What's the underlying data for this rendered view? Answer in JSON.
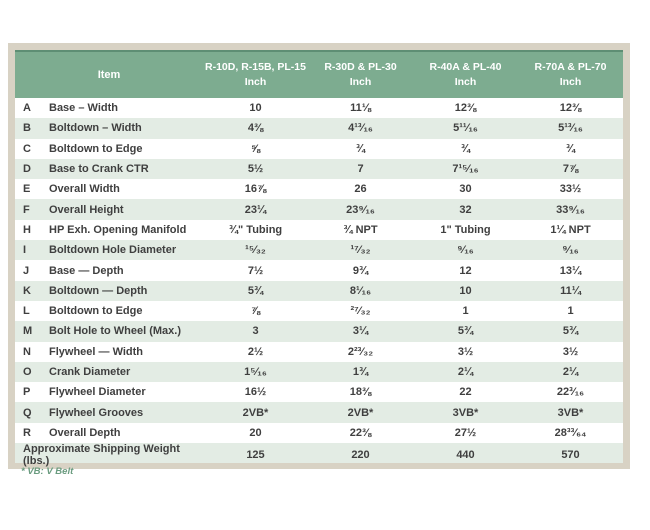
{
  "table": {
    "header": {
      "item_label": "Item",
      "columns": [
        {
          "models": "R-10D, R-15B, PL-15",
          "unit": "Inch"
        },
        {
          "models": "R-30D & PL-30",
          "unit": "Inch"
        },
        {
          "models": "R-40A & PL-40",
          "unit": "Inch"
        },
        {
          "models": "R-70A & PL-70",
          "unit": "Inch"
        }
      ]
    },
    "rows": [
      {
        "letter": "A",
        "item": "Base – Width",
        "values": [
          "10",
          "11⅛",
          "12⅜",
          "12⅜"
        ]
      },
      {
        "letter": "B",
        "item": "Boltdown – Width",
        "values": [
          "4⅜",
          "4¹³⁄₁₆",
          "5¹¹⁄₁₆",
          "5¹³⁄₁₆"
        ]
      },
      {
        "letter": "C",
        "item": "Boltdown to Edge",
        "values": [
          "⅝",
          "¾",
          "¾",
          "¾"
        ]
      },
      {
        "letter": "D",
        "item": "Base to Crank CTR",
        "values": [
          "5½",
          "7",
          "7¹⁵⁄₁₆",
          "7⅞"
        ]
      },
      {
        "letter": "E",
        "item": "Overall Width",
        "values": [
          "16⅞",
          "26",
          "30",
          "33½"
        ]
      },
      {
        "letter": "F",
        "item": "Overall Height",
        "values": [
          "23¼",
          "23⁹⁄₁₆",
          "32",
          "33⁹⁄₁₆"
        ]
      },
      {
        "letter": "H",
        "item": "HP Exh. Opening Manifold",
        "values": [
          "¾\" Tubing",
          "¾ NPT",
          "1\" Tubing",
          "1¼ NPT"
        ]
      },
      {
        "letter": "I",
        "item": "Boltdown Hole Diameter",
        "values": [
          "¹⁵⁄₃₂",
          "¹⁷⁄₃₂",
          "⁹⁄₁₆",
          "⁹⁄₁₆"
        ]
      },
      {
        "letter": "J",
        "item": "Base — Depth",
        "values": [
          "7½",
          "9¾",
          "12",
          "13¼"
        ]
      },
      {
        "letter": "K",
        "item": "Boltdown — Depth",
        "values": [
          "5¾",
          "8¹⁄₁₆",
          "10",
          "11¼"
        ]
      },
      {
        "letter": "L",
        "item": "Boltdown to Edge",
        "values": [
          "⅞",
          "²⁷⁄₃₂",
          "1",
          "1"
        ]
      },
      {
        "letter": "M",
        "item": "Bolt Hole to Wheel (Max.)",
        "values": [
          "3",
          "3¼",
          "5¾",
          "5¾"
        ]
      },
      {
        "letter": "N",
        "item": "Flywheel — Width",
        "values": [
          "2½",
          "2²³⁄₃₂",
          "3½",
          "3½"
        ]
      },
      {
        "letter": "O",
        "item": "Crank Diameter",
        "values": [
          "1⁵⁄₁₆",
          "1¾",
          "2¼",
          "2¼"
        ]
      },
      {
        "letter": "P",
        "item": "Flywheel Diameter",
        "values": [
          "16½",
          "18⅜",
          "22",
          "22³⁄₁₆"
        ]
      },
      {
        "letter": "Q",
        "item": "Flywheel Grooves",
        "values": [
          "2VB*",
          "2VB*",
          "3VB*",
          "3VB*"
        ]
      },
      {
        "letter": "R",
        "item": "Overall Depth",
        "values": [
          "20",
          "22⅜",
          "27½",
          "28³³⁄₆₄"
        ]
      }
    ],
    "footer_row": {
      "label": "Approximate Shipping Weight (lbs.)",
      "values": [
        "125",
        "220",
        "440",
        "570"
      ]
    },
    "footnote": "* VB: V Belt"
  },
  "colors": {
    "header_green": "#7dac90",
    "header_top_line": "#5e8e74",
    "row_tint_green": "#e3ece4",
    "frame_beige": "#d8d2c4",
    "body_text": "#3f3f3f",
    "footnote_green": "#6b9c80",
    "page_background": "#ffffff"
  }
}
